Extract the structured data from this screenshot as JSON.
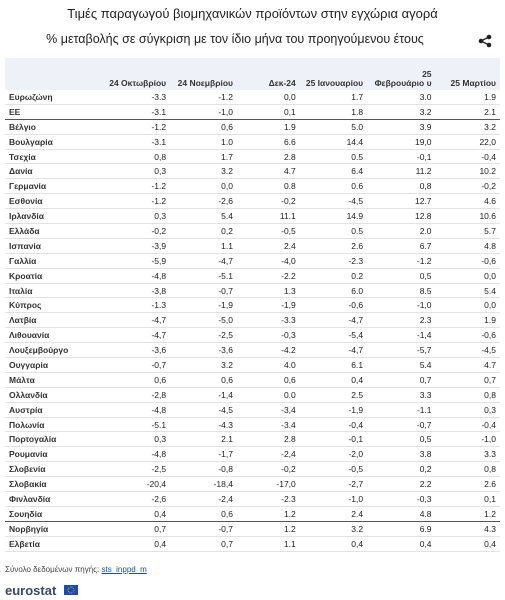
{
  "header": {
    "title": "Τιμές παραγωγού βιομηχανικών προϊόντων στην εγχώρια αγορά",
    "subtitle": "% μεταβολής σε σύγκριση με τον ίδιο μήνα του προηγούμενου έτους"
  },
  "table": {
    "columns": [
      "24 Οκτωβρίου",
      "24 Νοεμβρίου",
      "Δεκ-24",
      "25 Ιανουαρίου",
      "25 Φεβρουάριο υ",
      "25 Μαρτίου"
    ],
    "rows": [
      [
        "Ευρωζώνη",
        "-3.3",
        "-1.2",
        "0,0",
        "1.7",
        "3.0",
        "1.9"
      ],
      [
        "ΕΕ",
        "-3.1",
        "-1,0",
        "0,1",
        "1.8",
        "3.2",
        "2.1"
      ],
      [
        "Βέλγιο",
        "-1.2",
        "0,6",
        "1.9",
        "5.0",
        "3.9",
        "3.2"
      ],
      [
        "Βουλγαρία",
        "-3.1",
        "1.0",
        "6.6",
        "14.4",
        "19,0",
        "22,0"
      ],
      [
        "Τσεχία",
        "0,8",
        "1.7",
        "2.8",
        "0.5",
        "-0,1",
        "-0,4"
      ],
      [
        "Δανία",
        "0,3",
        "3.2",
        "4.7",
        "6.4",
        "11.2",
        "10.2"
      ],
      [
        "Γερμανία",
        "-1.2",
        "0,0",
        "0.8",
        "0.6",
        "0,8",
        "-0,2"
      ],
      [
        "Εσθονία",
        "-1.2",
        "-2,6",
        "-0,2",
        "-4,5",
        "12.7",
        "4.6"
      ],
      [
        "Ιρλανδία",
        "0,3",
        "5.4",
        "11.1",
        "14.9",
        "12.8",
        "10.6"
      ],
      [
        "Ελλάδα",
        "-0,2",
        "0,2",
        "-0,5",
        "0.5",
        "2.0",
        "5.7"
      ],
      [
        "Ισπανία",
        "-3,9",
        "1.1",
        "2.4",
        "2.6",
        "6.7",
        "4.8"
      ],
      [
        "Γαλλία",
        "-5,9",
        "-4,7",
        "-4,0",
        "-2.3",
        "-1.2",
        "-0,6"
      ],
      [
        "Κροατία",
        "-4,8",
        "-5.1",
        "-2.2",
        "0.2",
        "0,5",
        "0,0"
      ],
      [
        "Ιταλία",
        "-3,8",
        "-0,7",
        "1.3",
        "6.0",
        "8.5",
        "5.4"
      ],
      [
        "Κύπρος",
        "-1.3",
        "-1,9",
        "-1,9",
        "-0,6",
        "-1,0",
        "0,0"
      ],
      [
        "Λατβία",
        "-4,7",
        "-5,0",
        "-3.3",
        "-4,7",
        "2.3",
        "1.9"
      ],
      [
        "Λιθουανία",
        "-4,7",
        "-2,5",
        "-0,3",
        "-5,4",
        "-1,4",
        "-0,6"
      ],
      [
        "Λουξεμβούργο",
        "-3,6",
        "-3,6",
        "-4.2",
        "-4,7",
        "-5,7",
        "-4,5"
      ],
      [
        "Ουγγαρία",
        "-0,7",
        "3.2",
        "4.0",
        "6.1",
        "5.4",
        "4.7"
      ],
      [
        "Μάλτα",
        "0,6",
        "0,6",
        "0,6",
        "0,4",
        "0,7",
        "0,7"
      ],
      [
        "Ολλανδία",
        "-2,8",
        "-1,4",
        "0.0",
        "2.5",
        "3.3",
        "0,8"
      ],
      [
        "Αυστρία",
        "-4,8",
        "-4,5",
        "-3,4",
        "-1,9",
        "-1.1",
        "0,3"
      ],
      [
        "Πολωνία",
        "-5.1",
        "-4.3",
        "-3.4",
        "-0,4",
        "-0,7",
        "-0,4"
      ],
      [
        "Πορτογαλία",
        "0,3",
        "2.1",
        "2.8",
        "-0,1",
        "0,5",
        "-1,0"
      ],
      [
        "Ρουμανία",
        "-4,8",
        "-1,7",
        "-2,4",
        "-2,0",
        "3.8",
        "3.3"
      ],
      [
        "Σλοβενία",
        "-2,5",
        "-0,8",
        "-0,2",
        "-0,5",
        "0,2",
        "0,8"
      ],
      [
        "Σλοβακία",
        "-20,4",
        "-18,4",
        "-17,0",
        "-2,7",
        "2.2",
        "2.6"
      ],
      [
        "Φινλανδία",
        "-2,6",
        "-2,4",
        "-2.3",
        "-1,0",
        "-0,3",
        "0,1"
      ],
      [
        "Σουηδία",
        "0,4",
        "0,6",
        "1.2",
        "2.4",
        "4.8",
        "1.2"
      ],
      [
        "Νορβηγία",
        "0,7",
        "-0,7",
        "1.2",
        "3.2",
        "6.9",
        "4.3"
      ],
      [
        "Ελβετία",
        "0,4",
        "0,7",
        "1.1",
        "0,4",
        "0,4",
        "0,4"
      ]
    ]
  },
  "footer": {
    "source_label": "Σύνολο δεδομένων πηγής:",
    "source_link": "sts_inppd_m",
    "logo": "eurostat"
  }
}
